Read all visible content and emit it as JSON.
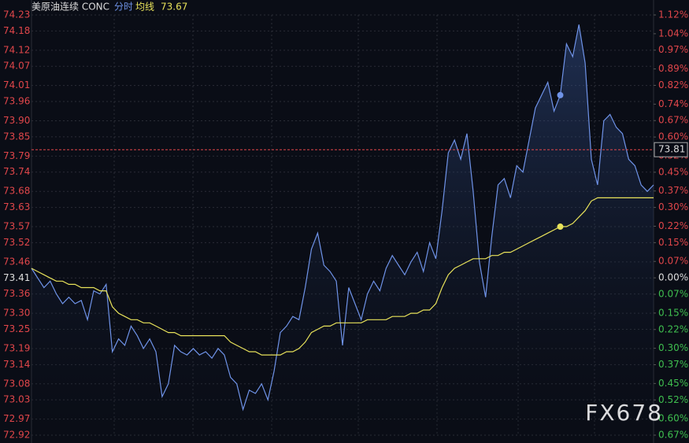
{
  "chart_data": {
    "type": "line",
    "title": "美原油连续 CONC",
    "legend_value": 73.67,
    "last_price": 73.81,
    "watermark": "FX678",
    "grid": true,
    "ylim": [
      72.92,
      74.23
    ],
    "yticks": [
      74.23,
      74.18,
      74.12,
      74.07,
      74.01,
      73.96,
      {
        "value": 73.9,
        "label": "73.90"
      },
      73.85,
      73.79,
      73.74,
      73.68,
      73.63,
      73.57,
      73.52,
      73.46,
      73.41,
      73.36,
      {
        "value": 73.3,
        "label": "73.30"
      },
      73.25,
      73.19,
      73.14,
      73.08,
      73.03,
      72.97,
      72.92
    ],
    "y2lim": [
      -0.67,
      1.12
    ],
    "y2ticks": [
      {
        "value": 1.12,
        "label": "1.12%"
      },
      {
        "value": 1.04,
        "label": "1.04%"
      },
      {
        "value": 0.97,
        "label": "0.97%"
      },
      {
        "value": 0.89,
        "label": "0.89%"
      },
      {
        "value": 0.82,
        "label": "0.82%"
      },
      {
        "value": 0.74,
        "label": "0.74%"
      },
      {
        "value": 0.67,
        "label": "0.67%"
      },
      {
        "value": 0.6,
        "label": "0.60%"
      },
      {
        "value": 0.52,
        "label": "0.52%"
      },
      {
        "value": 0.45,
        "label": "0.45%"
      },
      {
        "value": 0.37,
        "label": "0.37%"
      },
      {
        "value": 0.3,
        "label": "0.30%"
      },
      {
        "value": 0.22,
        "label": "0.22%"
      },
      {
        "value": 0.15,
        "label": "0.15%"
      },
      {
        "value": 0.07,
        "label": "0.07%"
      },
      {
        "value": 0,
        "label": "0.00%"
      },
      {
        "value": -0.07,
        "label": "0.07%"
      },
      {
        "value": -0.15,
        "label": "0.15%"
      },
      {
        "value": -0.22,
        "label": "0.22%"
      },
      {
        "value": -0.3,
        "label": "0.30%"
      },
      {
        "value": -0.37,
        "label": "0.37%"
      },
      {
        "value": -0.45,
        "label": "0.45%"
      },
      {
        "value": -0.52,
        "label": "0.52%"
      },
      {
        "value": -0.6,
        "label": "0.60%"
      },
      {
        "value": -0.67,
        "label": "0.67%"
      }
    ],
    "series": [
      {
        "name": "分时",
        "color": "#6f93e8",
        "values": [
          73.44,
          73.41,
          73.38,
          73.4,
          73.36,
          73.33,
          73.35,
          73.33,
          73.34,
          73.28,
          73.37,
          73.36,
          73.39,
          73.18,
          73.22,
          73.2,
          73.26,
          73.23,
          73.19,
          73.22,
          73.18,
          73.04,
          73.08,
          73.2,
          73.18,
          73.17,
          73.19,
          73.17,
          73.18,
          73.16,
          73.19,
          73.17,
          73.1,
          73.08,
          73.0,
          73.06,
          73.05,
          73.08,
          73.03,
          73.12,
          73.24,
          73.26,
          73.29,
          73.28,
          73.38,
          73.5,
          73.55,
          73.45,
          73.43,
          73.4,
          73.2,
          73.38,
          73.33,
          73.28,
          73.36,
          73.4,
          73.37,
          73.44,
          73.48,
          73.45,
          73.42,
          73.46,
          73.49,
          73.43,
          73.52,
          73.47,
          73.62,
          73.8,
          73.84,
          73.78,
          73.86,
          73.68,
          73.46,
          73.35,
          73.54,
          73.7,
          73.72,
          73.66,
          73.76,
          73.74,
          73.84,
          73.94,
          73.98,
          74.02,
          73.93,
          73.98,
          74.14,
          74.1,
          74.2,
          74.08,
          73.78,
          73.7,
          73.9,
          73.92,
          73.88,
          73.86,
          73.78,
          73.76,
          73.7,
          73.68,
          73.7
        ]
      },
      {
        "name": "均线",
        "color": "#e8e25a",
        "values": [
          73.44,
          73.43,
          73.42,
          73.41,
          73.4,
          73.4,
          73.39,
          73.39,
          73.38,
          73.38,
          73.38,
          73.37,
          73.37,
          73.32,
          73.3,
          73.29,
          73.28,
          73.28,
          73.27,
          73.27,
          73.26,
          73.25,
          73.24,
          73.24,
          73.23,
          73.23,
          73.23,
          73.23,
          73.23,
          73.23,
          73.23,
          73.23,
          73.21,
          73.2,
          73.19,
          73.18,
          73.18,
          73.17,
          73.17,
          73.17,
          73.17,
          73.18,
          73.18,
          73.19,
          73.21,
          73.24,
          73.25,
          73.26,
          73.26,
          73.27,
          73.27,
          73.27,
          73.27,
          73.27,
          73.28,
          73.28,
          73.28,
          73.28,
          73.29,
          73.29,
          73.29,
          73.3,
          73.3,
          73.31,
          73.31,
          73.33,
          73.38,
          73.42,
          73.44,
          73.45,
          73.46,
          73.47,
          73.47,
          73.47,
          73.48,
          73.48,
          73.49,
          73.49,
          73.5,
          73.51,
          73.52,
          73.53,
          73.54,
          73.55,
          73.56,
          73.57,
          73.57,
          73.58,
          73.6,
          73.62,
          73.65,
          73.66,
          73.66,
          73.66,
          73.66,
          73.66,
          73.66,
          73.66,
          73.66,
          73.66,
          73.66
        ]
      }
    ]
  }
}
